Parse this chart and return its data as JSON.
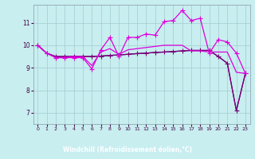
{
  "title": "",
  "xlabel": "Windchill (Refroidissement éolien,°C)",
  "background_color": "#c8eef0",
  "line_color_bright": "#dd00dd",
  "line_color_dark": "#770077",
  "grid_color": "#a0ccd0",
  "xlabel_bg": "#660066",
  "xlabel_fg": "#ffffff",
  "xlim": [
    -0.5,
    23.5
  ],
  "ylim": [
    6.5,
    11.8
  ],
  "xticks": [
    0,
    1,
    2,
    3,
    4,
    5,
    6,
    7,
    8,
    9,
    10,
    11,
    12,
    13,
    14,
    15,
    16,
    17,
    18,
    19,
    20,
    21,
    22,
    23
  ],
  "yticks": [
    7,
    8,
    9,
    10,
    11
  ],
  "series1_x": [
    0,
    1,
    2,
    3,
    4,
    5,
    6,
    7,
    8,
    9,
    10,
    11,
    12,
    13,
    14,
    15,
    16,
    17,
    18,
    19,
    20,
    21,
    22,
    23
  ],
  "series1_y": [
    10.0,
    9.65,
    9.45,
    9.45,
    9.45,
    9.45,
    8.95,
    9.8,
    10.35,
    9.5,
    10.35,
    10.35,
    10.5,
    10.45,
    11.05,
    11.1,
    11.55,
    11.1,
    11.2,
    9.65,
    10.25,
    10.15,
    9.65,
    8.75
  ],
  "series2_x": [
    0,
    1,
    2,
    3,
    4,
    5,
    6,
    7,
    8,
    9,
    10,
    11,
    12,
    13,
    14,
    15,
    16,
    17,
    18,
    19,
    20,
    21,
    22,
    23
  ],
  "series2_y": [
    10.0,
    9.65,
    9.45,
    9.45,
    9.5,
    9.5,
    9.1,
    9.7,
    9.85,
    9.6,
    9.8,
    9.85,
    9.9,
    9.95,
    10.0,
    10.0,
    10.0,
    9.75,
    9.75,
    9.7,
    9.7,
    9.7,
    8.8,
    8.75
  ],
  "series3_x": [
    0,
    1,
    2,
    3,
    4,
    5,
    6,
    7,
    8,
    9,
    10,
    11,
    12,
    13,
    14,
    15,
    16,
    17,
    18,
    19,
    20,
    21,
    22,
    23
  ],
  "series3_y": [
    10.0,
    9.65,
    9.5,
    9.5,
    9.5,
    9.5,
    9.5,
    9.52,
    9.55,
    9.57,
    9.6,
    9.63,
    9.65,
    9.68,
    9.7,
    9.72,
    9.75,
    9.77,
    9.77,
    9.77,
    9.5,
    9.2,
    7.1,
    8.75
  ],
  "series4_x": [
    0,
    1,
    2,
    3,
    4,
    5,
    6,
    7,
    8,
    9,
    10,
    11,
    12,
    13,
    14,
    15,
    16,
    17,
    18,
    19,
    20,
    21,
    22,
    23
  ],
  "series4_y": [
    10.0,
    9.65,
    9.5,
    9.5,
    9.5,
    9.5,
    9.5,
    9.52,
    9.55,
    9.57,
    9.6,
    9.63,
    9.65,
    9.68,
    9.7,
    9.72,
    9.75,
    9.77,
    9.77,
    9.77,
    9.5,
    9.2,
    7.1,
    8.75
  ]
}
